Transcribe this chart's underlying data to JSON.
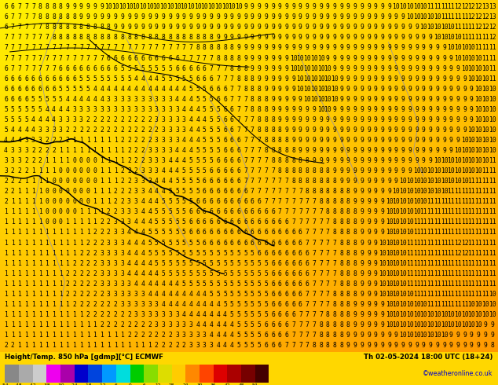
{
  "background_color_top": "#FFB300",
  "background_color_bottom": "#FFEE00",
  "bottom_label_left": "Height/Temp. 850 hPa [gdmp][°C] ECMWF",
  "bottom_label_right": "Th 02-05-2024 18:00 UTC (18+24)",
  "bottom_label_right2": "©weatheronline.co.uk",
  "colorbar_values": [
    -54,
    -48,
    -42,
    -38,
    -30,
    -24,
    -18,
    -12,
    -6,
    0,
    6,
    12,
    18,
    24,
    30,
    36,
    42,
    48,
    54
  ],
  "colorbar_colors": [
    "#888888",
    "#aaaaaa",
    "#cccccc",
    "#ee00ee",
    "#aa00aa",
    "#0000cc",
    "#0044dd",
    "#0099ff",
    "#00dddd",
    "#00cc00",
    "#88dd00",
    "#dddd00",
    "#ffcc00",
    "#ff8800",
    "#ff4400",
    "#dd0000",
    "#aa0000",
    "#770000",
    "#440000"
  ],
  "fig_width": 6.34,
  "fig_height": 4.9,
  "dpi": 100
}
